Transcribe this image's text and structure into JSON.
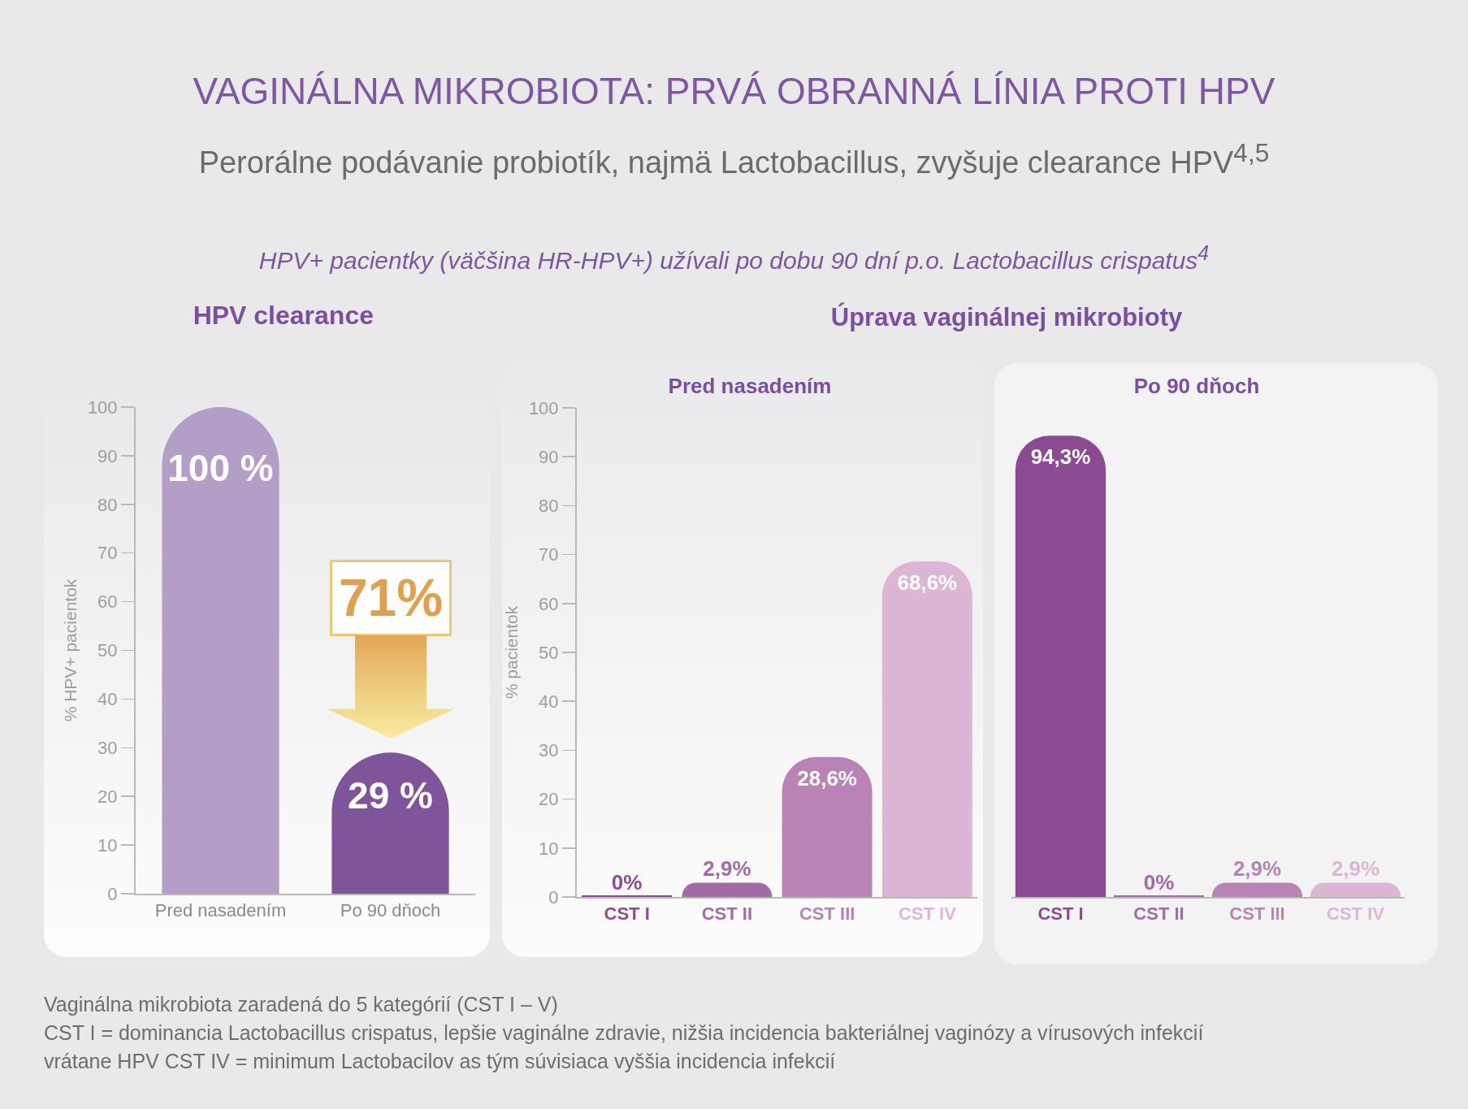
{
  "chart_data": [
    {
      "type": "other",
      "title": "VAGINÁLNA MIKROBIOTA: PRVÁ OBRANNÁ LÍNIA PROTI HPV",
      "subtitle": "Perorálne podávanie probiotík, najmä Lactobacillus, zvyšuje clearance HPV$^{4,5}$",
      "annotations": [
        "HPV+ pacientky (väčšina HR-HPV+) užívali po dobu 90 dní p.o. Lactobacillus crispatus$^{4}$",
        "Úprava vaginálnej mikrobioty",
        "Vaginálna mikrobiota zaradená do 5 kategórií (CST I – V)",
        "CST I = dominancia Lactobacillus crispatus, lepšie vaginálne zdravie, nižšia incidencia bakteriálnej vaginózy a vírusových infekcií",
        "vrátane HPV CST IV = minimum Lactobacilov as tým súvisiaca vyššia incidencia infekcií"
      ]
    },
    {
      "type": "bar",
      "title": "HPV clearance",
      "categories": [
        "Pred nasadením",
        "Po 90 dňoch"
      ],
      "values": [
        100,
        29
      ],
      "colors": [
        "#b39ec8",
        "#7e549b"
      ],
      "value_labels": [
        "100 %",
        "29 %"
      ],
      "ylabel": "% HPV+ pacientok",
      "ylim": [
        0,
        100
      ],
      "yticks": [
        0,
        10,
        20,
        30,
        40,
        50,
        60,
        70,
        80,
        90,
        100
      ],
      "annotations": [
        "71%"
      ]
    },
    {
      "type": "bar",
      "title": "Pred nasadením",
      "categories": [
        "CST I",
        "CST II",
        "CST III",
        "CST IV"
      ],
      "values": [
        0,
        2.9,
        28.6,
        68.6
      ],
      "colors": [
        "#8e4a94",
        "#a36aa8",
        "#b983b6",
        "#dcb7d5"
      ],
      "value_labels": [
        "0%",
        "2,9%",
        "28,6%",
        "68,6%"
      ],
      "ylabel": "% pacientok",
      "ylim": [
        0,
        100
      ],
      "yticks": [
        0,
        10,
        20,
        30,
        40,
        50,
        60,
        70,
        80,
        90,
        100
      ]
    },
    {
      "type": "bar",
      "title": "Po 90 dňoch",
      "categories": [
        "CST I",
        "CST II",
        "CST III",
        "CST IV"
      ],
      "values": [
        94.3,
        0,
        2.9,
        2.9
      ],
      "colors": [
        "#8b4b93",
        "#a36aa8",
        "#b983b6",
        "#dcb7d5"
      ],
      "value_labels": [
        "94,3%",
        "0%",
        "2,9%",
        "2,9%"
      ],
      "ylim": [
        0,
        100
      ],
      "yticks": [
        0,
        10,
        20,
        30,
        40,
        50,
        60,
        70,
        80,
        90,
        100
      ],
      "tick_labels": "x"
    }
  ]
}
